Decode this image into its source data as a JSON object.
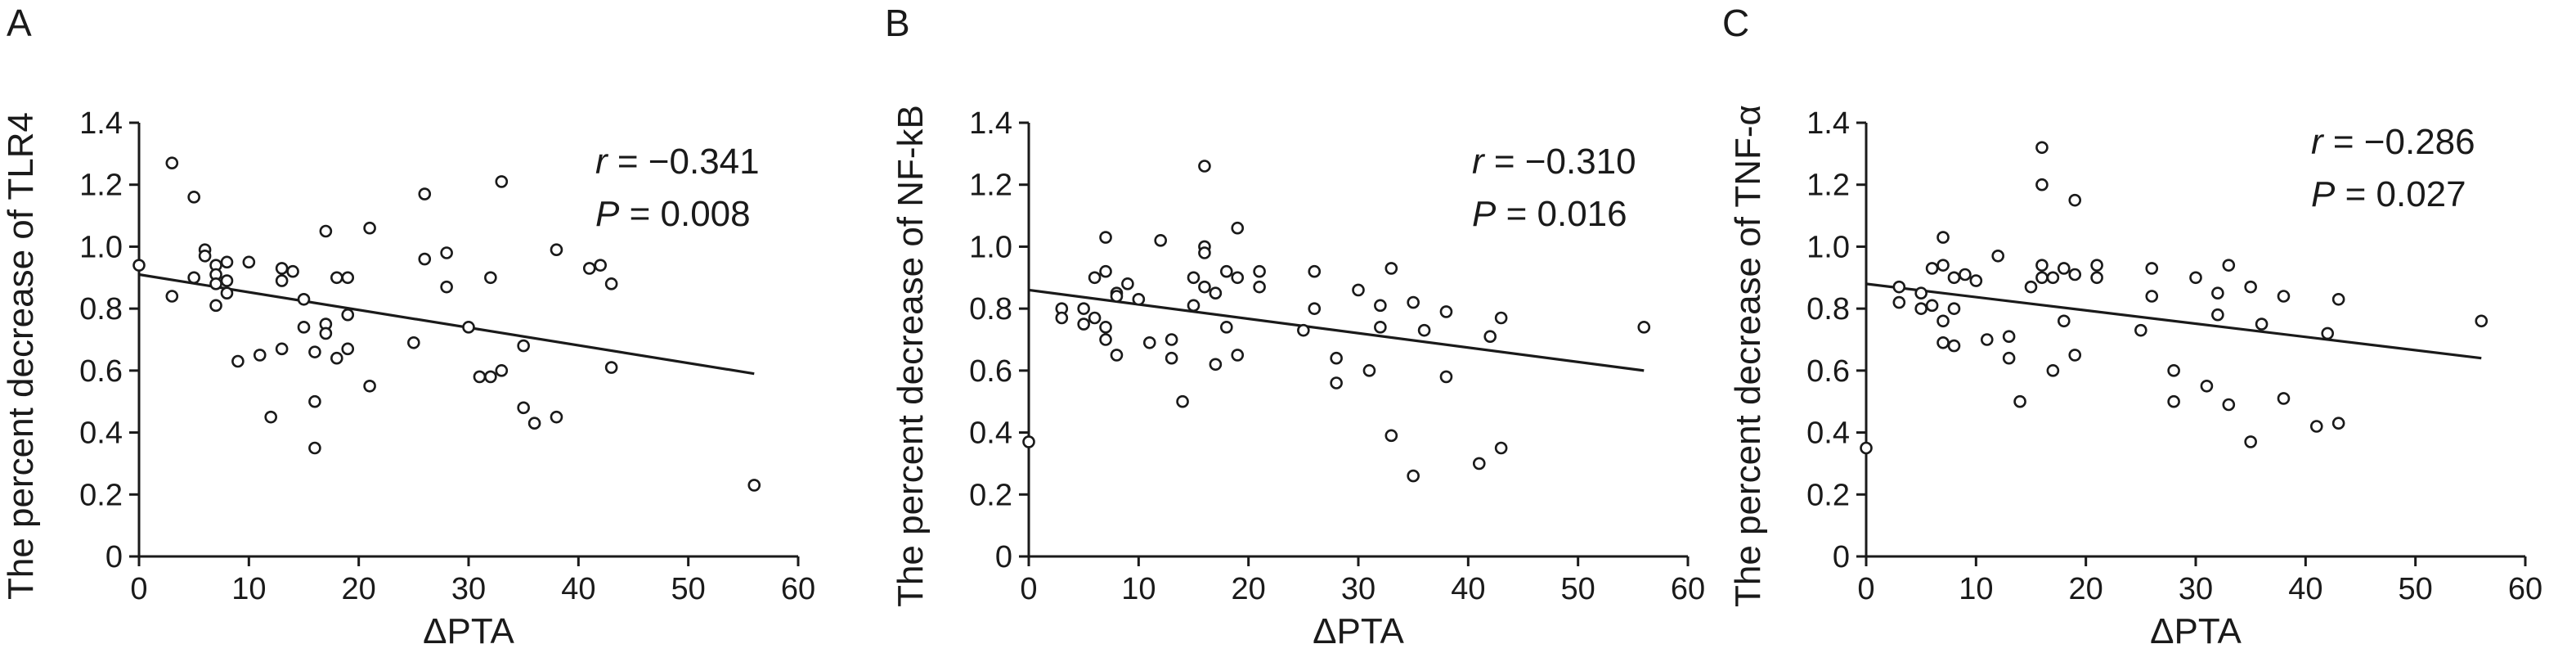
{
  "chart_data": [
    {
      "type": "scatter",
      "panel_label": "A",
      "xlabel": "ΔPTA",
      "ylabel": "The percent decrease of TLR4",
      "xlim": [
        0,
        60
      ],
      "ylim": [
        0,
        1.4
      ],
      "xticks": [
        "0",
        "10",
        "20",
        "30",
        "40",
        "50",
        "60"
      ],
      "yticks": [
        "0",
        "0.2",
        "0.4",
        "0.6",
        "0.8",
        "1.0",
        "1.2",
        "1.4"
      ],
      "stat_r_label": "r",
      "stat_r_value": " = −0.341",
      "stat_p_label": "P",
      "stat_p_value": " = 0.008",
      "fit_line": {
        "x": [
          0,
          56
        ],
        "y": [
          0.91,
          0.59
        ]
      },
      "points": [
        [
          0,
          0.94
        ],
        [
          3,
          1.27
        ],
        [
          3,
          0.84
        ],
        [
          5,
          1.16
        ],
        [
          5,
          0.9
        ],
        [
          6,
          0.99
        ],
        [
          6,
          0.97
        ],
        [
          7,
          0.94
        ],
        [
          7,
          0.91
        ],
        [
          7,
          0.88
        ],
        [
          7,
          0.81
        ],
        [
          8,
          0.95
        ],
        [
          8,
          0.89
        ],
        [
          8,
          0.85
        ],
        [
          9,
          0.63
        ],
        [
          10,
          0.95
        ],
        [
          11,
          0.65
        ],
        [
          12,
          0.45
        ],
        [
          13,
          0.93
        ],
        [
          13,
          0.89
        ],
        [
          13,
          0.67
        ],
        [
          14,
          0.92
        ],
        [
          15,
          0.83
        ],
        [
          15,
          0.74
        ],
        [
          16,
          0.66
        ],
        [
          16,
          0.5
        ],
        [
          16,
          0.35
        ],
        [
          17,
          1.05
        ],
        [
          17,
          0.75
        ],
        [
          17,
          0.72
        ],
        [
          18,
          0.9
        ],
        [
          18,
          0.64
        ],
        [
          19,
          0.9
        ],
        [
          19,
          0.78
        ],
        [
          19,
          0.67
        ],
        [
          21,
          1.06
        ],
        [
          21,
          0.55
        ],
        [
          25,
          0.69
        ],
        [
          26,
          1.17
        ],
        [
          26,
          0.96
        ],
        [
          28,
          0.98
        ],
        [
          28,
          0.87
        ],
        [
          30,
          0.74
        ],
        [
          31,
          0.58
        ],
        [
          32,
          0.9
        ],
        [
          32,
          0.58
        ],
        [
          33,
          1.21
        ],
        [
          33,
          0.6
        ],
        [
          35,
          0.68
        ],
        [
          35,
          0.48
        ],
        [
          36,
          0.43
        ],
        [
          38,
          0.99
        ],
        [
          38,
          0.45
        ],
        [
          41,
          0.93
        ],
        [
          42,
          0.94
        ],
        [
          43,
          0.88
        ],
        [
          43,
          0.61
        ],
        [
          56,
          0.23
        ]
      ]
    },
    {
      "type": "scatter",
      "panel_label": "B",
      "xlabel": "ΔPTA",
      "ylabel": "The percent decrease of NF-kB",
      "xlim": [
        0,
        60
      ],
      "ylim": [
        0,
        1.4
      ],
      "xticks": [
        "0",
        "10",
        "20",
        "30",
        "40",
        "50",
        "60"
      ],
      "yticks": [
        "0",
        "0.2",
        "0.4",
        "0.6",
        "0.8",
        "1.0",
        "1.2",
        "1.4"
      ],
      "stat_r_label": "r",
      "stat_r_value": " = −0.310",
      "stat_p_label": "P",
      "stat_p_value": " = 0.016",
      "fit_line": {
        "x": [
          0,
          56
        ],
        "y": [
          0.86,
          0.6
        ]
      },
      "points": [
        [
          0,
          0.37
        ],
        [
          3,
          0.8
        ],
        [
          3,
          0.77
        ],
        [
          5,
          0.8
        ],
        [
          5,
          0.75
        ],
        [
          6,
          0.9
        ],
        [
          6,
          0.77
        ],
        [
          7,
          1.03
        ],
        [
          7,
          0.92
        ],
        [
          7,
          0.74
        ],
        [
          7,
          0.7
        ],
        [
          8,
          0.85
        ],
        [
          8,
          0.84
        ],
        [
          8,
          0.65
        ],
        [
          9,
          0.88
        ],
        [
          10,
          0.83
        ],
        [
          11,
          0.69
        ],
        [
          12,
          1.02
        ],
        [
          13,
          0.7
        ],
        [
          13,
          0.64
        ],
        [
          14,
          0.5
        ],
        [
          15,
          0.9
        ],
        [
          15,
          0.81
        ],
        [
          16,
          1.26
        ],
        [
          16,
          1.0
        ],
        [
          16,
          0.98
        ],
        [
          16,
          0.87
        ],
        [
          17,
          0.85
        ],
        [
          17,
          0.62
        ],
        [
          18,
          0.92
        ],
        [
          18,
          0.74
        ],
        [
          19,
          1.06
        ],
        [
          19,
          0.9
        ],
        [
          19,
          0.65
        ],
        [
          21,
          0.92
        ],
        [
          21,
          0.87
        ],
        [
          25,
          0.73
        ],
        [
          26,
          0.92
        ],
        [
          26,
          0.8
        ],
        [
          28,
          0.64
        ],
        [
          28,
          0.56
        ],
        [
          30,
          0.86
        ],
        [
          31,
          0.6
        ],
        [
          32,
          0.81
        ],
        [
          32,
          0.74
        ],
        [
          33,
          0.93
        ],
        [
          33,
          0.39
        ],
        [
          35,
          0.82
        ],
        [
          35,
          0.26
        ],
        [
          36,
          0.73
        ],
        [
          38,
          0.79
        ],
        [
          38,
          0.58
        ],
        [
          41,
          0.3
        ],
        [
          42,
          0.71
        ],
        [
          43,
          0.77
        ],
        [
          43,
          0.35
        ],
        [
          56,
          0.74
        ]
      ]
    },
    {
      "type": "scatter",
      "panel_label": "C",
      "xlabel": "ΔPTA",
      "ylabel": "The percent decrease of TNF-α",
      "xlim": [
        0,
        60
      ],
      "ylim": [
        0,
        1.4
      ],
      "xticks": [
        "0",
        "10",
        "20",
        "30",
        "40",
        "50",
        "60"
      ],
      "yticks": [
        "0",
        "0.2",
        "0.4",
        "0.6",
        "0.8",
        "1.0",
        "1.2",
        "1.4"
      ],
      "stat_r_label": "r",
      "stat_r_value": " = −0.286",
      "stat_p_label": "P",
      "stat_p_value": " = 0.027",
      "fit_line": {
        "x": [
          0,
          56
        ],
        "y": [
          0.88,
          0.64
        ]
      },
      "points": [
        [
          0,
          0.35
        ],
        [
          3,
          0.87
        ],
        [
          3,
          0.82
        ],
        [
          5,
          0.85
        ],
        [
          5,
          0.8
        ],
        [
          6,
          0.93
        ],
        [
          6,
          0.81
        ],
        [
          7,
          1.03
        ],
        [
          7,
          0.94
        ],
        [
          7,
          0.76
        ],
        [
          7,
          0.69
        ],
        [
          8,
          0.9
        ],
        [
          8,
          0.8
        ],
        [
          8,
          0.68
        ],
        [
          9,
          0.91
        ],
        [
          10,
          0.89
        ],
        [
          11,
          0.7
        ],
        [
          12,
          0.97
        ],
        [
          13,
          0.71
        ],
        [
          13,
          0.64
        ],
        [
          14,
          0.5
        ],
        [
          15,
          0.87
        ],
        [
          16,
          1.32
        ],
        [
          16,
          1.2
        ],
        [
          16,
          0.94
        ],
        [
          16,
          0.9
        ],
        [
          17,
          0.9
        ],
        [
          17,
          0.6
        ],
        [
          18,
          0.93
        ],
        [
          18,
          0.76
        ],
        [
          19,
          1.15
        ],
        [
          19,
          0.91
        ],
        [
          19,
          0.65
        ],
        [
          21,
          0.94
        ],
        [
          21,
          0.9
        ],
        [
          25,
          0.73
        ],
        [
          26,
          0.93
        ],
        [
          26,
          0.84
        ],
        [
          28,
          0.6
        ],
        [
          28,
          0.5
        ],
        [
          30,
          0.9
        ],
        [
          31,
          0.55
        ],
        [
          32,
          0.85
        ],
        [
          32,
          0.78
        ],
        [
          33,
          0.94
        ],
        [
          33,
          0.49
        ],
        [
          35,
          0.87
        ],
        [
          35,
          0.37
        ],
        [
          36,
          0.75
        ],
        [
          38,
          0.84
        ],
        [
          38,
          0.51
        ],
        [
          41,
          0.42
        ],
        [
          42,
          0.72
        ],
        [
          43,
          0.83
        ],
        [
          43,
          0.43
        ],
        [
          56,
          0.76
        ]
      ]
    }
  ]
}
